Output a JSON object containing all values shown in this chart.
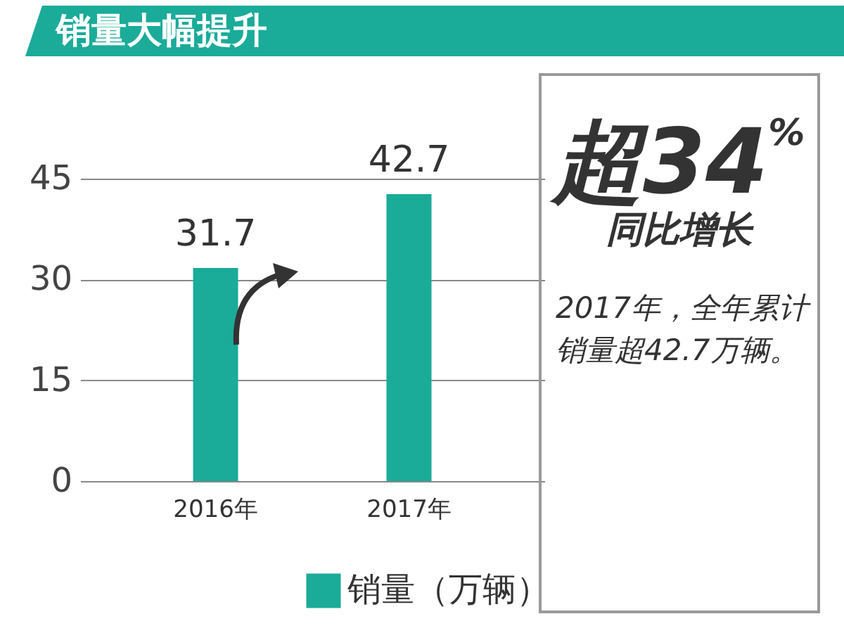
{
  "chart_data": {
    "type": "bar",
    "title": "销量大幅提升",
    "categories": [
      "2016年",
      "2017年"
    ],
    "series": [
      {
        "name": "销量（万辆）",
        "color": "#1aab99",
        "values": [
          31.7,
          42.7
        ]
      }
    ],
    "ylim": [
      0,
      45
    ],
    "yticks": [
      0,
      15,
      30,
      45
    ],
    "grid": "y",
    "legend": "bottom",
    "data_labels": true,
    "annotations": [
      "超34$^{%}$",
      "同比增长",
      "2017年，全年累计销量超42.7万辆。"
    ]
  }
}
